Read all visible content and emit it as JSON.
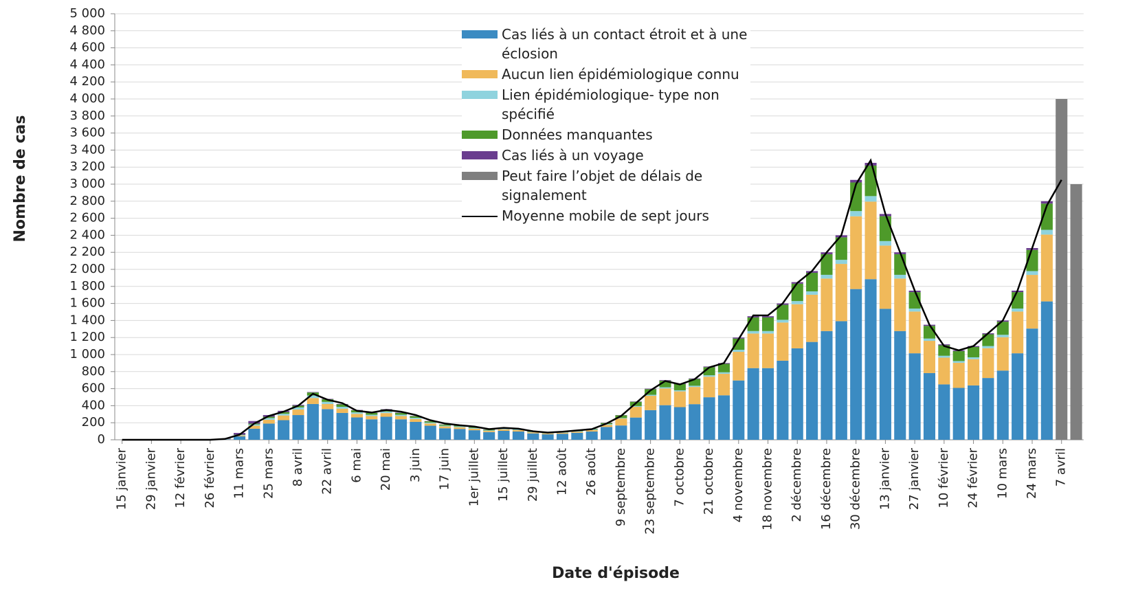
{
  "chart_data": {
    "type": "bar",
    "stacked": true,
    "grid": true,
    "y_label": "Nombre de cas",
    "x_label": "Date d'épisode",
    "categories": [
      "15 janvier",
      null,
      "29 janvier",
      null,
      "12 février",
      null,
      "26 février",
      null,
      "11 mars",
      null,
      "25 mars",
      null,
      "8 avril",
      null,
      "22 avril",
      null,
      "6 mai",
      null,
      "20 mai",
      null,
      "3 juin",
      null,
      "17 juin",
      null,
      "1er juillet",
      null,
      "15 juillet",
      null,
      "29 juillet",
      null,
      "12 août",
      null,
      "26 août",
      null,
      "9 septembre",
      null,
      "23 septembre",
      null,
      "7 octobre",
      null,
      "21 octobre",
      null,
      "4 novembre",
      null,
      "18 novembre",
      null,
      "2 décembre",
      null,
      "16 décembre",
      null,
      "30 décembre",
      null,
      "13 janvier",
      null,
      "27 janvier",
      null,
      "10 février",
      null,
      "24 février",
      null,
      "10 mars",
      null,
      "24 mars",
      null,
      "7 avril",
      null
    ],
    "ylim": [
      0,
      5000
    ],
    "yticks": [
      0,
      200,
      400,
      600,
      800,
      {
        "value": 1000,
        "label": "1 000"
      },
      {
        "value": 1200,
        "label": "1 200"
      },
      {
        "value": 1400,
        "label": "1 400"
      },
      {
        "value": 1600,
        "label": "1 600"
      },
      {
        "value": 1800,
        "label": "1 800"
      },
      {
        "value": 2000,
        "label": "2 000"
      },
      {
        "value": 2200,
        "label": "2 200"
      },
      {
        "value": 2400,
        "label": "2 400"
      },
      {
        "value": 2600,
        "label": "2 600"
      },
      {
        "value": 2800,
        "label": "2 800"
      },
      {
        "value": 3000,
        "label": "3 000"
      },
      {
        "value": 3200,
        "label": "3 200"
      },
      {
        "value": 3400,
        "label": "3 400"
      },
      {
        "value": 3600,
        "label": "3 600"
      },
      {
        "value": 3800,
        "label": "3 800"
      },
      {
        "value": 4000,
        "label": "4 000"
      },
      {
        "value": 4200,
        "label": "4 200"
      },
      {
        "value": 4400,
        "label": "4 400"
      },
      {
        "value": 4600,
        "label": "4 600"
      },
      {
        "value": 4800,
        "label": "4 800"
      },
      {
        "value": 5000,
        "label": "5 000"
      }
    ],
    "series": [
      {
        "name": "Cas liés à un contact étroit et à une éclosion",
        "type": "bar",
        "color": "#3b8bc2",
        "values": [
          0,
          0,
          0,
          0,
          0,
          0,
          0,
          6,
          40,
          130,
          190,
          230,
          290,
          420,
          360,
          315,
          262,
          240,
          270,
          240,
          210,
          165,
          135,
          127,
          112,
          90,
          105,
          97,
          75,
          64,
          71,
          82,
          97,
          150,
          168,
          261,
          348,
          406,
          383,
          418,
          499,
          522,
          696,
          841,
          841,
          928,
          1073,
          1148,
          1276,
          1392,
          1769,
          1885,
          1537,
          1276,
          1015,
          783,
          650,
          609,
          638,
          725,
          812,
          1015,
          1305,
          1624,
          0,
          0
        ]
      },
      {
        "name": "Aucun lien épidémiologique connu",
        "type": "bar",
        "color": "#f0b95a",
        "values": [
          0,
          0,
          0,
          0,
          0,
          0,
          0,
          2,
          10,
          35,
          45,
          55,
          65,
          70,
          60,
          50,
          42,
          38,
          43,
          38,
          34,
          26,
          22,
          20,
          18,
          14,
          17,
          16,
          12,
          10,
          11,
          13,
          16,
          24,
          81,
          126,
          168,
          196,
          185,
          202,
          241,
          252,
          336,
          406,
          406,
          448,
          518,
          554,
          616,
          672,
          854,
          910,
          742,
          616,
          490,
          378,
          314,
          294,
          308,
          350,
          392,
          490,
          630,
          784,
          0,
          0
        ]
      },
      {
        "name": "Lien épidémiologique- type non spécifié",
        "type": "bar",
        "color": "#8fd3de",
        "values": [
          0,
          0,
          0,
          0,
          0,
          0,
          0,
          1,
          6,
          15,
          20,
          20,
          25,
          30,
          25,
          22,
          18,
          16,
          18,
          16,
          14,
          11,
          9,
          9,
          8,
          6,
          7,
          7,
          5,
          4,
          5,
          6,
          7,
          10,
          6,
          9,
          12,
          14,
          13,
          14,
          17,
          18,
          24,
          29,
          29,
          32,
          37,
          40,
          44,
          48,
          61,
          65,
          53,
          44,
          35,
          27,
          22,
          21,
          22,
          25,
          28,
          35,
          45,
          56,
          0,
          0
        ]
      },
      {
        "name": "Données manquantes",
        "type": "bar",
        "color": "#4e9a2a",
        "values": [
          0,
          0,
          0,
          0,
          0,
          0,
          0,
          1,
          4,
          10,
          15,
          20,
          20,
          35,
          30,
          28,
          24,
          22,
          25,
          22,
          19,
          15,
          12,
          12,
          10,
          8,
          9,
          8,
          6,
          5,
          6,
          7,
          8,
          13,
          32,
          50,
          66,
          77,
          73,
          79,
          95,
          99,
          132,
          160,
          160,
          176,
          204,
          218,
          242,
          264,
          336,
          358,
          292,
          242,
          193,
          149,
          123,
          116,
          121,
          138,
          154,
          193,
          248,
          308,
          0,
          0
        ]
      },
      {
        "name": "Cas liés à un voyage",
        "type": "bar",
        "color": "#6a3d8f",
        "values": [
          0,
          0,
          0,
          0,
          0,
          0,
          0,
          5,
          20,
          30,
          20,
          15,
          10,
          5,
          5,
          5,
          4,
          4,
          4,
          4,
          3,
          3,
          2,
          2,
          2,
          2,
          2,
          2,
          2,
          2,
          2,
          2,
          2,
          3,
          3,
          4,
          6,
          7,
          6,
          7,
          8,
          9,
          12,
          14,
          14,
          16,
          18,
          20,
          22,
          24,
          30,
          32,
          26,
          22,
          17,
          13,
          11,
          10,
          11,
          12,
          14,
          17,
          22,
          28,
          0,
          0
        ]
      },
      {
        "name": "Peut faire l’objet de délais de signalement",
        "type": "bar",
        "color": "#7f7f7f",
        "values": [
          0,
          0,
          0,
          0,
          0,
          0,
          0,
          0,
          0,
          0,
          0,
          0,
          0,
          0,
          0,
          0,
          0,
          0,
          0,
          0,
          0,
          0,
          0,
          0,
          0,
          0,
          0,
          0,
          0,
          0,
          0,
          0,
          0,
          0,
          0,
          0,
          0,
          0,
          0,
          0,
          0,
          0,
          0,
          0,
          0,
          0,
          0,
          0,
          0,
          0,
          0,
          0,
          0,
          0,
          0,
          0,
          0,
          0,
          0,
          0,
          0,
          0,
          0,
          0,
          4000,
          3000
        ]
      },
      {
        "name": "Moyenne mobile de sept jours",
        "type": "line",
        "color": "#000000",
        "values": [
          0,
          0,
          0,
          0,
          0,
          0,
          0,
          10,
          60,
          190,
          280,
          330,
          400,
          540,
          470,
          430,
          340,
          320,
          350,
          330,
          290,
          230,
          190,
          170,
          155,
          125,
          140,
          130,
          100,
          85,
          95,
          110,
          125,
          190,
          280,
          430,
          580,
          690,
          650,
          710,
          850,
          900,
          1180,
          1460,
          1460,
          1600,
          1840,
          1980,
          2200,
          2400,
          3000,
          3280,
          2650,
          2200,
          1750,
          1350,
          1100,
          1050,
          1100,
          1250,
          1400,
          1750,
          2250,
          2750,
          3050,
          null
        ]
      }
    ]
  }
}
